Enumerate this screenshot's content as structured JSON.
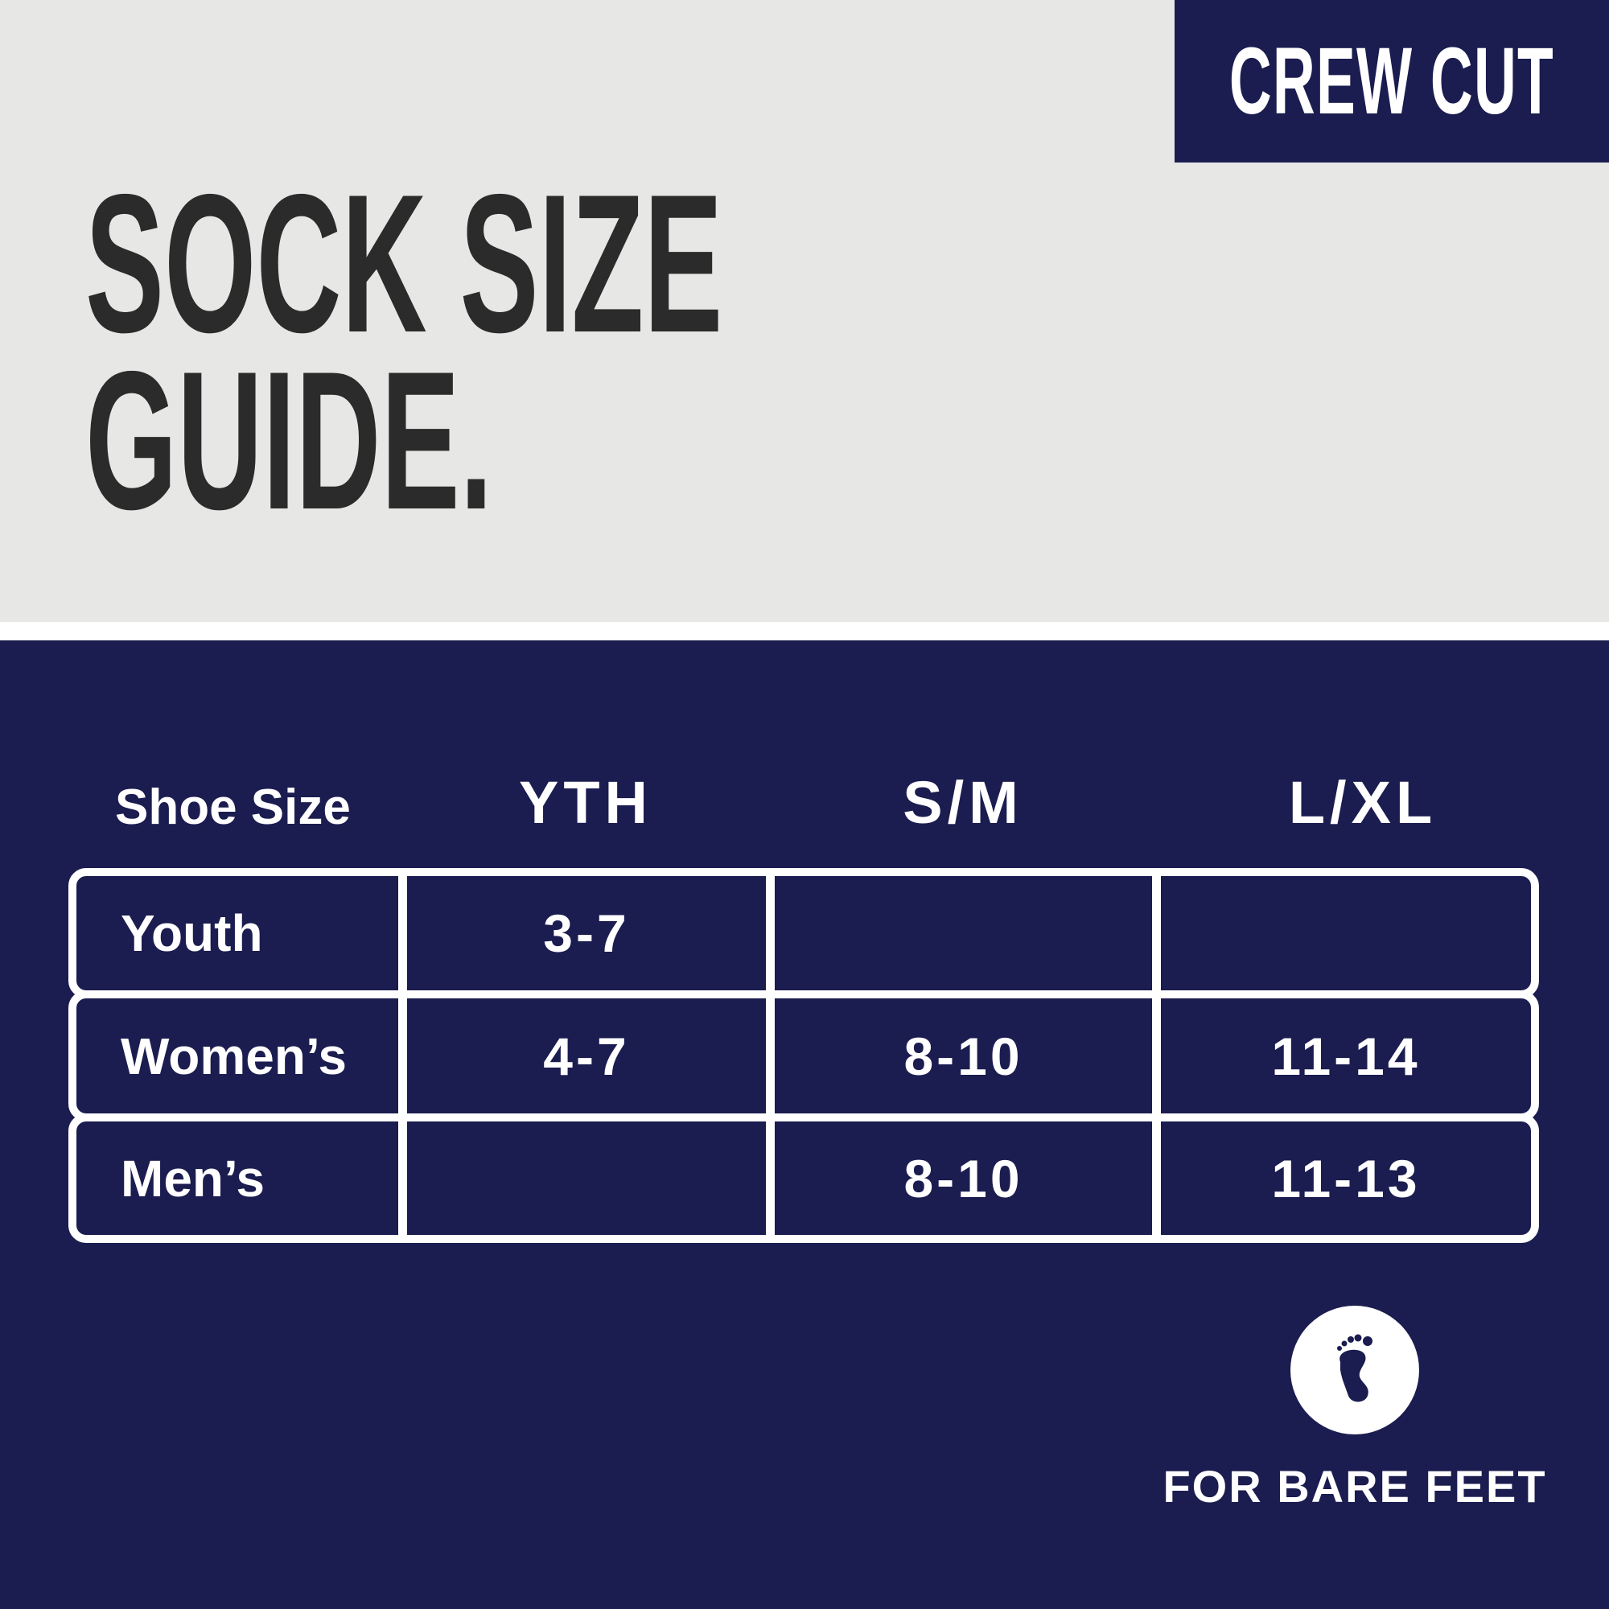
{
  "badge": {
    "label": "CREW CUT"
  },
  "title": {
    "line1": "SOCK SIZE",
    "line2": "GUIDE."
  },
  "table": {
    "header_label": "Shoe Size",
    "columns": [
      "YTH",
      "S/M",
      "L/XL"
    ],
    "rows": [
      {
        "label": "Youth",
        "values": [
          "3-7",
          "",
          ""
        ]
      },
      {
        "label": "Women’s",
        "values": [
          "4-7",
          "8-10",
          "11-14"
        ]
      },
      {
        "label": "Men’s",
        "values": [
          "",
          "8-10",
          "11-13"
        ]
      }
    ]
  },
  "footer": {
    "icon": "bare-foot-icon",
    "label": "FOR BARE FEET"
  },
  "colors": {
    "navy": "#1b1c4f",
    "gray": "#e7e7e5",
    "text_dark": "#2b2b2b"
  }
}
